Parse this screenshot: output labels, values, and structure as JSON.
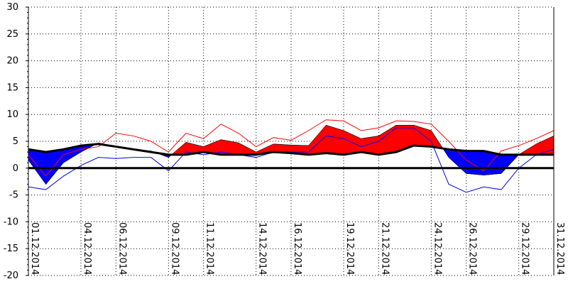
{
  "chart_data": {
    "type": "area",
    "title": "",
    "xlabel": "",
    "ylabel": "",
    "ylim": [
      -20,
      30
    ],
    "yticks": [
      -20,
      -15,
      -10,
      -5,
      0,
      5,
      10,
      15,
      20,
      25,
      30
    ],
    "grid": true,
    "x_labels": [
      "01.12.2014",
      "04.12.2014",
      "06.12.2014",
      "09.12.2014",
      "11.12.2014",
      "14.12.2014",
      "16.12.2014",
      "19.12.2014",
      "21.12.2014",
      "24.12.2014",
      "26.12.2014",
      "29.12.2014",
      "31.12.2014"
    ],
    "x_label_days": [
      1,
      4,
      6,
      9,
      11,
      14,
      16,
      19,
      21,
      24,
      26,
      29,
      31
    ],
    "days": [
      1,
      2,
      3,
      4,
      5,
      6,
      7,
      8,
      9,
      10,
      11,
      12,
      13,
      14,
      15,
      16,
      17,
      18,
      19,
      20,
      21,
      22,
      23,
      24,
      25,
      26,
      27,
      28,
      29,
      30,
      31
    ],
    "series": [
      {
        "role": "actual_mean",
        "values": [
          1.5,
          -3.0,
          1.0,
          3.0,
          4.7,
          4.0,
          3.5,
          3.2,
          2.0,
          4.8,
          4.0,
          5.3,
          4.7,
          3.0,
          4.5,
          4.3,
          4.2,
          8.0,
          7.0,
          5.5,
          6.0,
          8.0,
          8.0,
          7.0,
          2.0,
          -1.0,
          -1.3,
          -1.0,
          2.5,
          4.5,
          6.0
        ],
        "color": "#000000"
      },
      {
        "role": "normal",
        "values": [
          3.5,
          3.0,
          3.5,
          4.2,
          4.5,
          4.0,
          3.5,
          3.0,
          2.5,
          2.5,
          3.0,
          2.5,
          2.5,
          2.5,
          3.0,
          2.8,
          2.5,
          2.8,
          2.5,
          3.0,
          2.5,
          3.0,
          4.2,
          4.0,
          3.5,
          3.2,
          3.2,
          2.5,
          2.5,
          2.5,
          2.5
        ],
        "color": "#000000"
      },
      {
        "role": "max",
        "values": [
          2.5,
          -1.5,
          2.5,
          3.5,
          4.0,
          6.5,
          6.0,
          5.0,
          3.0,
          6.5,
          5.5,
          8.2,
          6.5,
          4.0,
          5.7,
          5.2,
          7.0,
          9.0,
          8.8,
          7.0,
          7.5,
          8.8,
          8.7,
          8.2,
          5.0,
          1.5,
          -0.5,
          3.2,
          4.2,
          5.5,
          7.0
        ],
        "color": "#ff0000"
      },
      {
        "role": "min",
        "values": [
          -3.5,
          -4.0,
          -1.5,
          0.5,
          2.0,
          1.8,
          2.0,
          2.0,
          -0.5,
          3.0,
          2.5,
          3.0,
          2.5,
          2.0,
          3.0,
          3.0,
          3.0,
          6.0,
          5.5,
          4.0,
          5.0,
          7.5,
          7.5,
          5.0,
          -3.0,
          -4.5,
          -3.5,
          -4.0,
          0.0,
          2.5,
          3.5
        ],
        "color": "#0000ff"
      }
    ],
    "fill_colors": {
      "above": "#ff0000",
      "below": "#0000ff"
    },
    "zero_line": true
  }
}
